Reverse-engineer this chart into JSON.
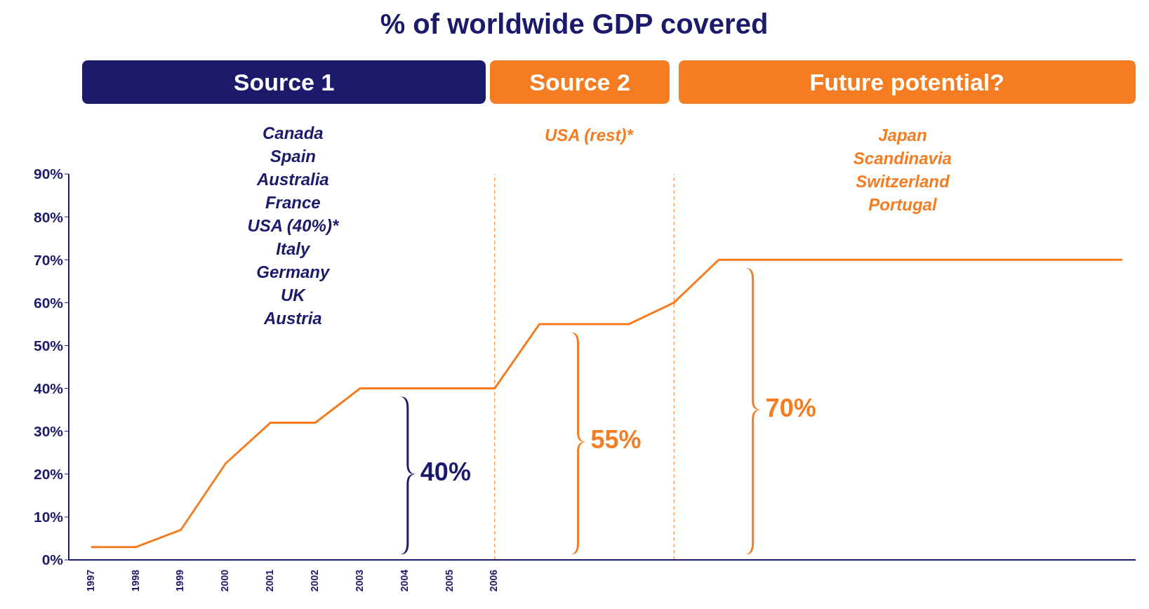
{
  "chart_data": {
    "type": "line",
    "title": "% of worldwide GDP covered",
    "x": [
      1997,
      1998,
      1999,
      2000,
      2001,
      2002,
      2003,
      2004,
      2005,
      2006,
      2007,
      2008,
      2009,
      2010,
      2011,
      2020
    ],
    "series": [
      {
        "color": "#f57c20",
        "values": [
          3,
          3,
          7,
          22.5,
          32,
          32,
          40,
          40,
          40,
          40,
          55,
          55,
          55,
          60,
          70,
          70
        ]
      }
    ],
    "xlim": [
      1996.5,
      2020.3
    ],
    "xticks": [
      1997,
      1998,
      1999,
      2000,
      2001,
      2002,
      2003,
      2004,
      2005,
      2006
    ],
    "ylim": [
      0,
      90
    ],
    "yticks": [
      {
        "value": 0,
        "label": "0%"
      },
      {
        "value": 10,
        "label": "10%"
      },
      {
        "value": 20,
        "label": "20%"
      },
      {
        "value": 30,
        "label": "30%"
      },
      {
        "value": 40,
        "label": "40%"
      },
      {
        "value": 50,
        "label": "50%"
      },
      {
        "value": 60,
        "label": "60%"
      },
      {
        "value": 70,
        "label": "70%"
      },
      {
        "value": 80,
        "label": "80%"
      },
      {
        "value": 90,
        "label": "90%"
      }
    ],
    "ref_lines": [
      {
        "axis": "x",
        "value": 2006,
        "color": "#f57c20",
        "line_style": "dashed"
      },
      {
        "axis": "x",
        "value": 2010,
        "color": "#f57c20",
        "line_style": "dashed"
      }
    ],
    "annotations": [
      "Source 1",
      "Source 2",
      "Future potential?",
      "Canada\nSpain\nAustralia\nFrance\nUSA (40%)*\nItaly\nGermany\nUK\nAustria",
      "USA (rest)*",
      "Japan\nScandinavia\nSwitzerland\nPortugal",
      "40%",
      "55%",
      "70%"
    ],
    "grid": false,
    "legend": false,
    "marker": "none",
    "line_style": "solid"
  }
}
